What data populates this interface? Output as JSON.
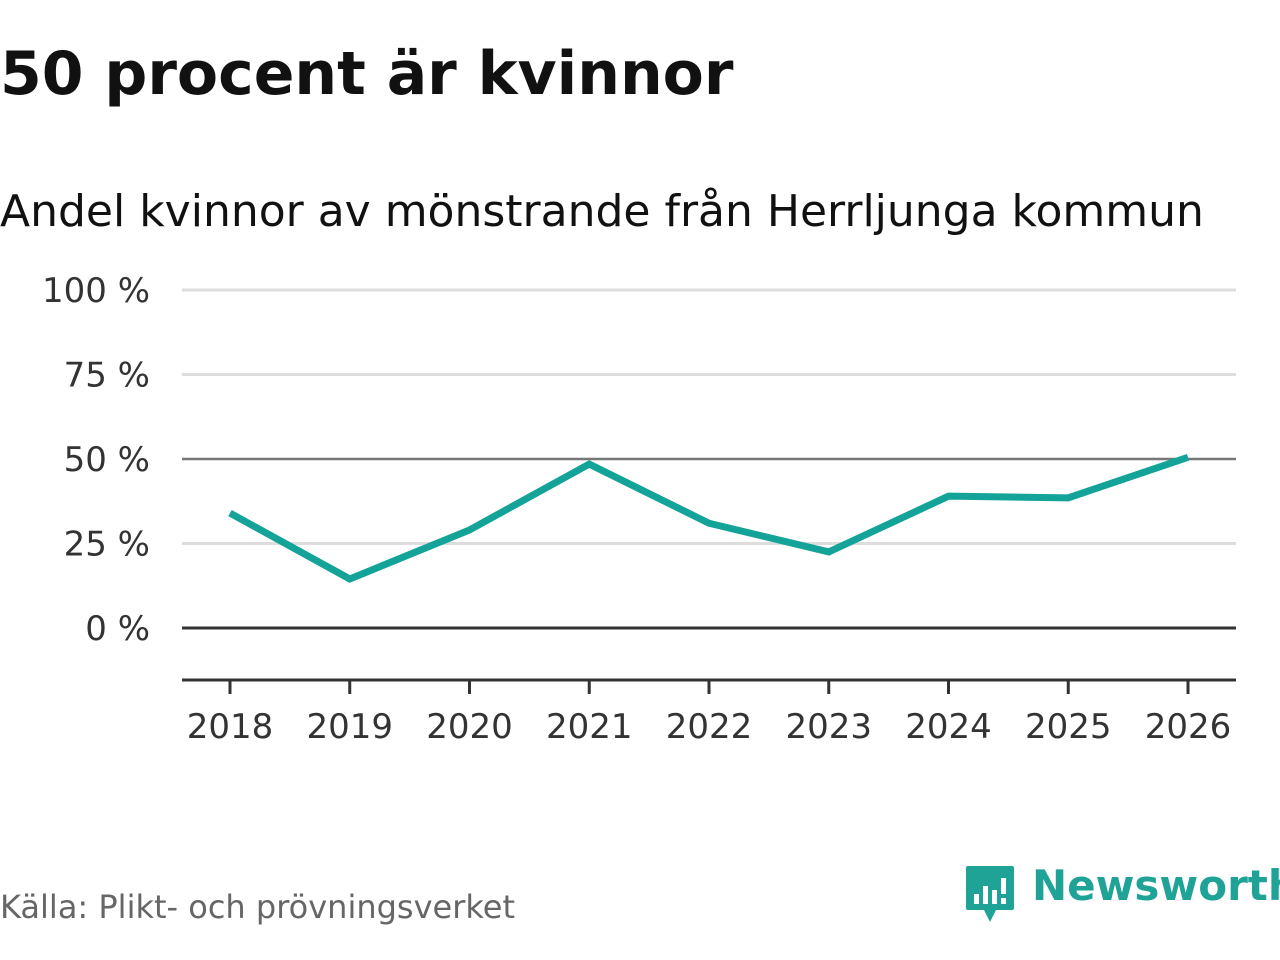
{
  "header": {
    "title": "50 procent är kvinnor",
    "subtitle": "Andel kvinnor av mönstrande från Herrljunga kommun"
  },
  "footer": {
    "source": "Källa: Plikt- och prövningsverket",
    "brand": "Newsworthy"
  },
  "colors": {
    "line": "#14a399",
    "grid": "#dddddd",
    "baseline": "#333333",
    "brand": "#1fa397"
  },
  "chart_data": {
    "type": "line",
    "title": "50 procent är kvinnor",
    "subtitle": "Andel kvinnor av mönstrande från Herrljunga kommun",
    "xlabel": "",
    "ylabel": "",
    "categories": [
      "2018",
      "2019",
      "2020",
      "2021",
      "2022",
      "2023",
      "2024",
      "2025",
      "2026"
    ],
    "series": [
      {
        "name": "Andel kvinnor",
        "values": [
          34,
          14.5,
          29,
          48.5,
          31,
          22.5,
          39,
          38.5,
          50.5
        ]
      }
    ],
    "y_ticks": [
      0,
      25,
      50,
      75,
      100
    ],
    "y_tick_labels": [
      "0 %",
      "25 %",
      "50 %",
      "75 %",
      "100 %"
    ],
    "ylim": [
      -15,
      100
    ],
    "grid": true,
    "reference_line": 50,
    "legend": "none"
  }
}
